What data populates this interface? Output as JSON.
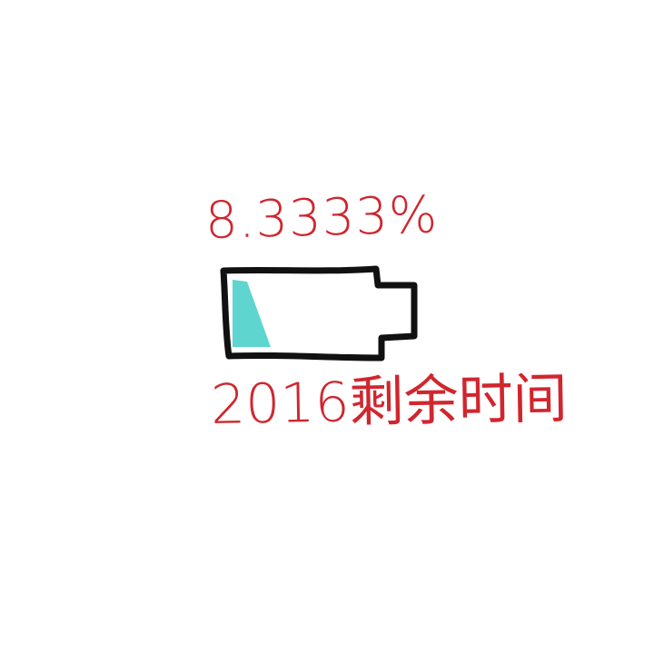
{
  "battery": {
    "percent_text": "8.3333%",
    "level_fraction": 0.083333,
    "caption": "2016剩余时间"
  },
  "colors": {
    "ink_red": "#d0262e",
    "outline": "#111111",
    "fill": "#5ed6cf",
    "background": "#ffffff"
  }
}
